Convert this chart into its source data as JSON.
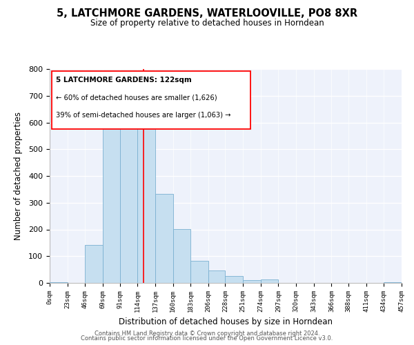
{
  "title": "5, LATCHMORE GARDENS, WATERLOOVILLE, PO8 8XR",
  "subtitle": "Size of property relative to detached houses in Horndean",
  "xlabel": "Distribution of detached houses by size in Horndean",
  "ylabel": "Number of detached properties",
  "bar_edges": [
    0,
    23,
    46,
    69,
    91,
    114,
    137,
    160,
    183,
    206,
    228,
    251,
    274,
    297,
    320,
    343,
    366,
    388,
    411,
    434,
    457
  ],
  "bar_heights": [
    2,
    0,
    143,
    633,
    632,
    612,
    333,
    201,
    83,
    46,
    27,
    10,
    12,
    0,
    0,
    0,
    0,
    0,
    0,
    2
  ],
  "bar_color": "#c6dff0",
  "bar_edgecolor": "#7ab0d0",
  "property_line_x": 122,
  "property_line_color": "red",
  "ylim": [
    0,
    800
  ],
  "xlim": [
    0,
    457
  ],
  "yticks": [
    0,
    100,
    200,
    300,
    400,
    500,
    600,
    700,
    800
  ],
  "tick_labels": [
    "0sqm",
    "23sqm",
    "46sqm",
    "69sqm",
    "91sqm",
    "114sqm",
    "137sqm",
    "160sqm",
    "183sqm",
    "206sqm",
    "228sqm",
    "251sqm",
    "274sqm",
    "297sqm",
    "320sqm",
    "343sqm",
    "366sqm",
    "388sqm",
    "411sqm",
    "434sqm",
    "457sqm"
  ],
  "annotation_title": "5 LATCHMORE GARDENS: 122sqm",
  "annotation_line1": "← 60% of detached houses are smaller (1,626)",
  "annotation_line2": "39% of semi-detached houses are larger (1,063) →",
  "footer1": "Contains HM Land Registry data © Crown copyright and database right 2024.",
  "footer2": "Contains public sector information licensed under the Open Government Licence v3.0.",
  "bg_color": "#eef2fb"
}
